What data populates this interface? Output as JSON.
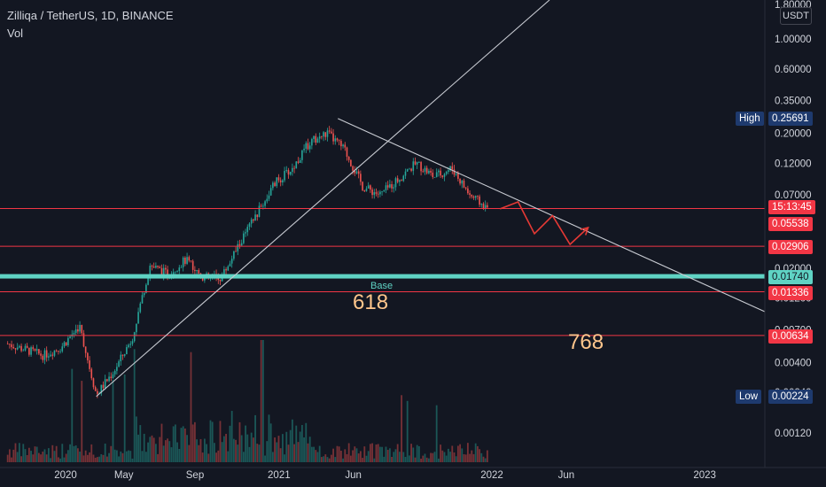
{
  "header": {
    "symbol": "Zilliqa / TetherUS, 1D, BINANCE",
    "indicator": "Vol"
  },
  "currency_button": "USDT",
  "colors": {
    "background": "#131722",
    "up": "#26a69a",
    "down": "#ef5350",
    "level_line": "#f23645",
    "base_line": "#5fd3c4",
    "trendline": "#c8cbd2",
    "label_orange": "#ffc68c",
    "tag_dark": "#1e3a6e"
  },
  "price_labels": {
    "high_label": "High",
    "high_value": "0.25691",
    "countdown": "15:13:45",
    "current_price": "0.05538",
    "low_label": "Low",
    "low_value": "0.00224"
  },
  "annotations": {
    "base": "Base",
    "fib_618": "618",
    "fib_768": "768"
  },
  "chart_data": {
    "type": "candlestick",
    "title": "Zilliqa / TetherUS, 1D, BINANCE",
    "y_scale": "log",
    "y_ticks": [
      "1.80000",
      "1.00000",
      "0.60000",
      "0.35000",
      "0.20000",
      "0.12000",
      "0.07000",
      "0.04000",
      "0.02000",
      "0.01200",
      "0.00700",
      "0.00400",
      "0.00240",
      "0.00120"
    ],
    "x_ticks": [
      "2020",
      "May",
      "Sep",
      "2021",
      "Jun",
      "2022",
      "Jun",
      "2023"
    ],
    "horizontal_levels": [
      {
        "price": 0.05538,
        "label": "0.05538"
      },
      {
        "price": 0.02906,
        "label": "0.02906"
      },
      {
        "price": 0.0174,
        "label": "0.01740",
        "name": "Base"
      },
      {
        "price": 0.01336,
        "label": "0.01336"
      },
      {
        "price": 0.00634,
        "label": "0.00634"
      }
    ],
    "high": 0.25691,
    "low": 0.00224,
    "price_path": [
      {
        "date": "2019-10",
        "price": 0.0055
      },
      {
        "date": "2019-12",
        "price": 0.0045
      },
      {
        "date": "2020-01",
        "price": 0.0052
      },
      {
        "date": "2020-02",
        "price": 0.0075
      },
      {
        "date": "2020-03",
        "price": 0.0023
      },
      {
        "date": "2020-04",
        "price": 0.0035
      },
      {
        "date": "2020-05",
        "price": 0.006
      },
      {
        "date": "2020-06",
        "price": 0.021
      },
      {
        "date": "2020-07",
        "price": 0.018
      },
      {
        "date": "2020-08",
        "price": 0.023
      },
      {
        "date": "2020-09",
        "price": 0.017
      },
      {
        "date": "2020-10",
        "price": 0.017
      },
      {
        "date": "2020-11",
        "price": 0.03
      },
      {
        "date": "2021-01",
        "price": 0.085
      },
      {
        "date": "2021-02",
        "price": 0.11
      },
      {
        "date": "2021-03",
        "price": 0.17
      },
      {
        "date": "2021-04",
        "price": 0.2
      },
      {
        "date": "2021-05",
        "price": 0.15
      },
      {
        "date": "2021-06",
        "price": 0.08
      },
      {
        "date": "2021-07",
        "price": 0.07
      },
      {
        "date": "2021-09",
        "price": 0.12
      },
      {
        "date": "2021-10",
        "price": 0.095
      },
      {
        "date": "2021-11",
        "price": 0.11
      },
      {
        "date": "2021-12",
        "price": 0.07
      },
      {
        "date": "2022-01",
        "price": 0.055
      }
    ],
    "projection": [
      {
        "date": "2022-01",
        "price": 0.055
      },
      {
        "date": "2022-02",
        "price": 0.062
      },
      {
        "date": "2022-03",
        "price": 0.036
      },
      {
        "date": "2022-04",
        "price": 0.049
      },
      {
        "date": "2022-05",
        "price": 0.03
      },
      {
        "date": "2022-06",
        "price": 0.04
      }
    ]
  }
}
